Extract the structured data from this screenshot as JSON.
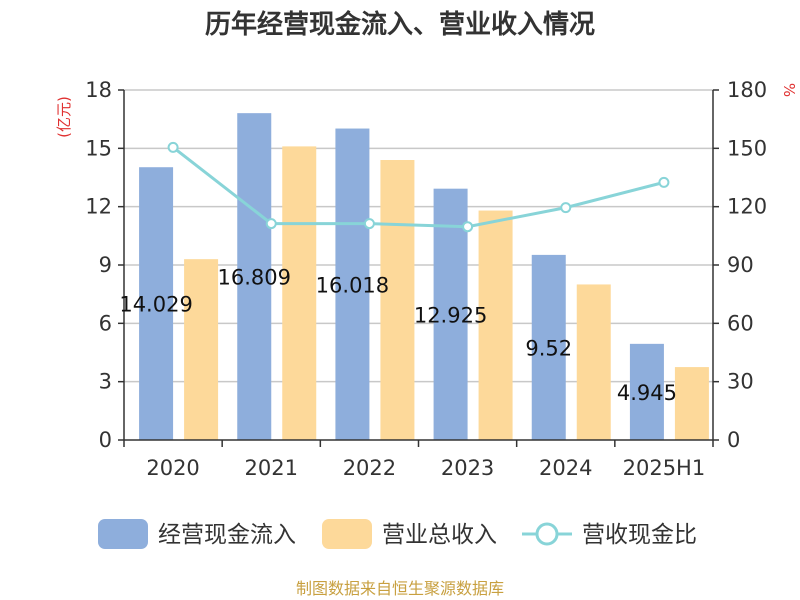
{
  "chart_data": {
    "type": "bar",
    "title": "历年经营现金流入、营业收入情况",
    "categories": [
      "2020",
      "2021",
      "2022",
      "2023",
      "2024",
      "2025H1"
    ],
    "y_left": {
      "label": "(亿元)",
      "ylim": [
        0,
        18
      ],
      "ticks": [
        "0",
        "3",
        "6",
        "9",
        "12",
        "15",
        "18"
      ]
    },
    "y_right": {
      "label": "%",
      "ylim": [
        0,
        180
      ],
      "ticks": [
        "0",
        "30",
        "60",
        "90",
        "120",
        "150",
        "180"
      ]
    },
    "series": [
      {
        "name": "经营现金流入",
        "type": "bar",
        "axis": "left",
        "color": "#8eaedc",
        "values": [
          14.029,
          16.809,
          16.018,
          12.925,
          9.52,
          4.945
        ],
        "labels": [
          "14.029",
          "16.809",
          "16.018",
          "12.925",
          "9.52",
          "4.945"
        ]
      },
      {
        "name": "营业总收入",
        "type": "bar",
        "axis": "left",
        "color": "#fdd99a",
        "values": [
          9.3,
          15.1,
          14.4,
          11.8,
          8.0,
          3.75
        ]
      },
      {
        "name": "营收现金比",
        "type": "line",
        "axis": "right",
        "color": "#88d4d8",
        "values": [
          150.5,
          111.3,
          111.3,
          109.7,
          119.5,
          132.5
        ]
      }
    ],
    "grid": true,
    "legend_position": "bottom"
  },
  "source": "制图数据来自恒生聚源数据库"
}
